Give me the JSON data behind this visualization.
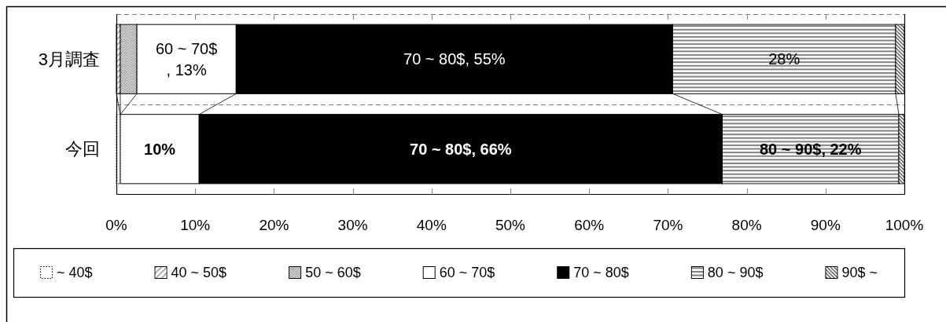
{
  "chart_data": {
    "type": "bar",
    "orientation": "horizontal",
    "stacked": true,
    "categories": [
      "3月調査",
      "今回"
    ],
    "series": [
      {
        "name": "~ 40$",
        "color": "#ffffff",
        "values": [
          null,
          0.5
        ]
      },
      {
        "name": "40 ~ 50$",
        "color": "#808080",
        "values": [
          0.5,
          null
        ]
      },
      {
        "name": "50 ~ 60$",
        "color": "#808080",
        "values": [
          2.1,
          null
        ]
      },
      {
        "name": "60 ~ 70$",
        "color": "#ffffff",
        "values": [
          12.6,
          10.0
        ],
        "value_labels": [
          "60 ~ 70$, 13%",
          "10%"
        ]
      },
      {
        "name": "70 ~ 80$",
        "color": "#000000",
        "values": [
          55.4,
          66.4
        ],
        "value_labels": [
          "70 ~ 80$, 55%",
          "70 ~ 80$, 66%"
        ]
      },
      {
        "name": "80 ~ 90$",
        "color": "#808080",
        "values": [
          28.3,
          22.4
        ],
        "value_labels": [
          "28%",
          "80 ~ 90$, 22%"
        ]
      },
      {
        "name": "90$ ~",
        "color": "#595959",
        "values": [
          1.1,
          0.7
        ]
      }
    ],
    "xlim": [
      0,
      100
    ],
    "xticks": [
      {
        "value": 0,
        "label": "0%"
      },
      {
        "value": 10,
        "label": "10%"
      },
      {
        "value": 20,
        "label": "20%"
      },
      {
        "value": 30,
        "label": "30%"
      },
      {
        "value": 40,
        "label": "40%"
      },
      {
        "value": 50,
        "label": "50%"
      },
      {
        "value": 60,
        "label": "60%"
      },
      {
        "value": 70,
        "label": "70%"
      },
      {
        "value": 80,
        "label": "80%"
      },
      {
        "value": 90,
        "label": "90%"
      },
      {
        "value": 100,
        "label": "100%"
      }
    ],
    "grid": "y",
    "legend": "bottom"
  }
}
